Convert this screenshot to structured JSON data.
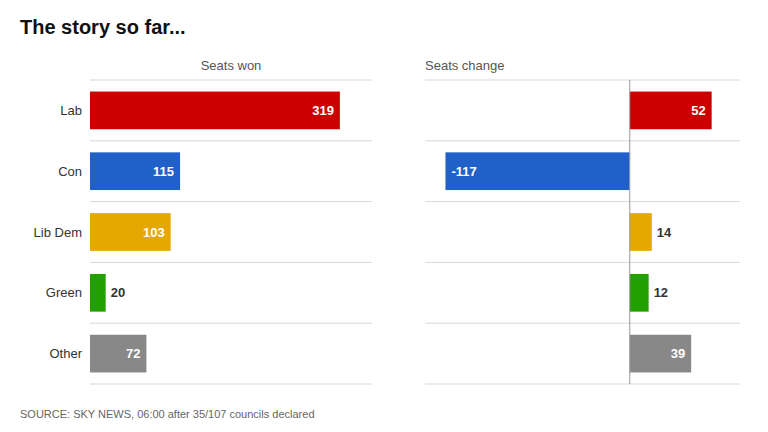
{
  "chart_data": [
    {
      "type": "bar",
      "orientation": "horizontal",
      "title": "The story so far...",
      "subtitle": "Seats won",
      "source": "SOURCE: SKY NEWS, 06:00 after 35/107 councils declared",
      "categories": [
        "Lab",
        "Con",
        "Lib Dem",
        "Green",
        "Other"
      ],
      "values": [
        319,
        115,
        103,
        20,
        72
      ],
      "colors": [
        "#cc0000",
        "#2060c8",
        "#e5a800",
        "#22a000",
        "#888888"
      ],
      "xlim": [
        0,
        360
      ],
      "data_labels": true,
      "tick_labels": "y",
      "grid": false
    },
    {
      "type": "bar",
      "orientation": "horizontal",
      "subtitle": "Seats change",
      "categories": [
        null,
        null,
        null,
        null,
        null
      ],
      "values": [
        52,
        -117,
        14,
        12,
        39
      ],
      "colors": [
        "#cc0000",
        "#2060c8",
        "#e5a800",
        "#22a000",
        "#888888"
      ],
      "xlim": [
        -130,
        70
      ],
      "data_labels": true,
      "tick_labels": false,
      "grid": false
    }
  ]
}
